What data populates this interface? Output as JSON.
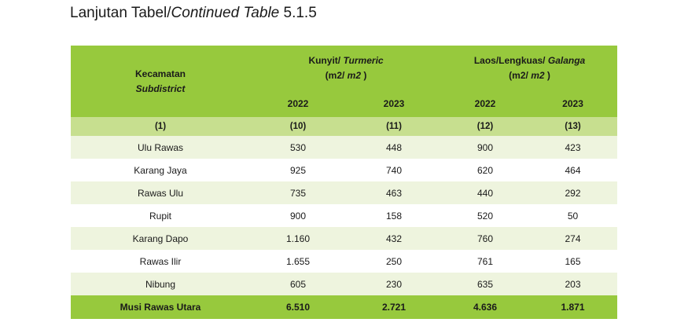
{
  "title": {
    "prefix": "Lanjutan Tabel/",
    "italic": "Continued Table",
    "number": " 5.1.5"
  },
  "header": {
    "col1_id": "Kecamatan",
    "col1_en": "Subdistrict",
    "group1": {
      "name": "Kunyit/ ",
      "name_en": "Turmeric",
      "unit_open": "(m2/ ",
      "unit_it": "m2",
      "unit_close": " )"
    },
    "group2": {
      "name": "Laos/Lengkuas/ ",
      "name_en": "Galanga",
      "unit_open": "(m2/ ",
      "unit_it": "m2",
      "unit_close": " )"
    },
    "years": [
      "2022",
      "2023",
      "2022",
      "2023"
    ],
    "colnums": [
      "(1)",
      "(10)",
      "(11)",
      "(12)",
      "(13)"
    ]
  },
  "rows": [
    {
      "name": "Ulu Rawas",
      "v": [
        "530",
        "448",
        "900",
        "423"
      ]
    },
    {
      "name": "Karang Jaya",
      "v": [
        "925",
        "740",
        "620",
        "464"
      ]
    },
    {
      "name": "Rawas Ulu",
      "v": [
        "735",
        "463",
        "440",
        "292"
      ]
    },
    {
      "name": "Rupit",
      "v": [
        "900",
        "158",
        "520",
        "50"
      ]
    },
    {
      "name": "Karang Dapo",
      "v": [
        "1.160",
        "432",
        "760",
        "274"
      ]
    },
    {
      "name": "Rawas Ilir",
      "v": [
        "1.655",
        "250",
        "761",
        "165"
      ]
    },
    {
      "name": "Nibung",
      "v": [
        "605",
        "230",
        "635",
        "203"
      ]
    }
  ],
  "total": {
    "name": "Musi Rawas Utara",
    "v": [
      "6.510",
      "2.721",
      "4.636",
      "1.871"
    ]
  },
  "colors": {
    "header": "#97c93d",
    "colnum_band": "#c7df8f",
    "stripe": "#eef4de"
  }
}
